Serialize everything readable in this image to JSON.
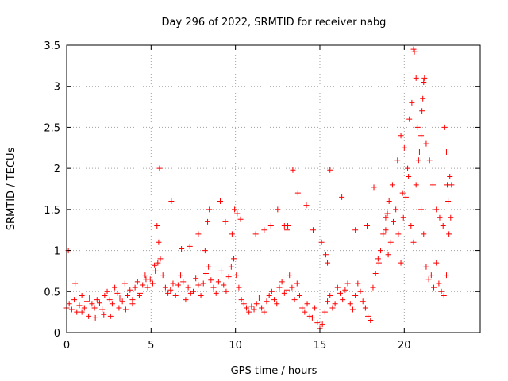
{
  "chart_data": {
    "type": "scatter",
    "title": "Day 296 of 2022, SRMTID for receiver nabg",
    "xlabel": "GPS time / hours",
    "ylabel": "SRMTID / TECUs",
    "xlim": [
      0,
      24.5
    ],
    "ylim": [
      0,
      3.5
    ],
    "x_ticks": [
      0,
      5,
      10,
      15,
      20
    ],
    "x_tick_labels": [
      "0",
      "5",
      "10",
      "15",
      "20"
    ],
    "y_ticks": [
      0,
      0.5,
      1,
      1.5,
      2,
      2.5,
      3,
      3.5
    ],
    "y_tick_labels": [
      "0",
      "0.5",
      "1",
      "1.5",
      "2",
      "2.5",
      "3",
      "3.5"
    ],
    "grid": true,
    "marker": "+",
    "series": [
      {
        "name": "SRMTID",
        "color": "#ff0000",
        "x": [
          0.0,
          0.15,
          0.3,
          0.45,
          0.6,
          0.75,
          0.9,
          1.05,
          1.2,
          1.35,
          1.5,
          1.65,
          1.8,
          1.95,
          2.1,
          2.25,
          2.4,
          2.55,
          2.7,
          2.85,
          3.0,
          3.15,
          3.3,
          3.45,
          3.6,
          3.75,
          3.9,
          4.05,
          4.2,
          4.35,
          4.5,
          4.65,
          4.8,
          4.95,
          5.1,
          5.25,
          5.4,
          5.55,
          5.7,
          5.85,
          6.0,
          6.15,
          6.3,
          6.45,
          6.6,
          6.75,
          6.9,
          7.05,
          7.2,
          7.35,
          7.5,
          7.65,
          7.8,
          7.95,
          8.1,
          8.25,
          8.4,
          8.55,
          8.7,
          8.85,
          9.0,
          9.15,
          9.3,
          9.45,
          9.6,
          9.75,
          9.9,
          10.05,
          10.2,
          10.35,
          10.5,
          10.65,
          10.8,
          10.95,
          11.1,
          11.25,
          11.4,
          11.55,
          11.7,
          11.85,
          12.0,
          12.15,
          12.3,
          12.45,
          12.6,
          12.75,
          12.9,
          13.05,
          13.2,
          13.35,
          13.5,
          13.65,
          13.8,
          13.95,
          14.1,
          14.25,
          14.4,
          14.55,
          14.7,
          14.85,
          15.0,
          15.15,
          15.3,
          15.45,
          15.6,
          15.75,
          15.9,
          16.05,
          16.2,
          16.35,
          16.5,
          16.65,
          16.8,
          16.95,
          17.1,
          17.25,
          17.4,
          17.55,
          17.7,
          17.85,
          18.0,
          18.15,
          18.3,
          18.45,
          18.6,
          18.75,
          18.9,
          19.05,
          19.2,
          19.35,
          19.5,
          19.65,
          19.8,
          19.95,
          20.1,
          20.25,
          20.4,
          20.55,
          20.7,
          20.85,
          21.0,
          21.15,
          21.3,
          21.45,
          21.6,
          21.75,
          21.9,
          22.05,
          22.2,
          22.35,
          22.5,
          22.65,
          22.8,
          0.1,
          0.5,
          0.9,
          1.3,
          1.7,
          2.2,
          2.6,
          3.1,
          3.5,
          3.9,
          4.3,
          4.7,
          5.2,
          5.35,
          5.45,
          5.5,
          6.2,
          6.8,
          7.3,
          7.8,
          8.2,
          8.35,
          8.45,
          9.1,
          9.4,
          9.8,
          9.95,
          10.1,
          10.3,
          11.2,
          11.7,
          12.1,
          12.5,
          12.9,
          13.05,
          13.1,
          13.4,
          13.7,
          14.2,
          14.6,
          15.1,
          15.35,
          15.45,
          15.6,
          16.3,
          17.1,
          17.8,
          18.2,
          18.5,
          18.9,
          19.0,
          19.1,
          19.3,
          19.6,
          19.8,
          19.9,
          20.0,
          20.2,
          20.3,
          20.45,
          20.55,
          20.6,
          20.7,
          20.8,
          20.9,
          21.0,
          21.05,
          21.1,
          21.15,
          21.2,
          21.3,
          21.5,
          21.7,
          21.9,
          22.1,
          22.3,
          22.4,
          22.5,
          22.55,
          22.6,
          22.7,
          22.75
        ],
        "y": [
          0.3,
          0.35,
          0.28,
          0.4,
          0.25,
          0.33,
          0.45,
          0.3,
          0.38,
          0.42,
          0.35,
          0.3,
          0.4,
          0.36,
          0.28,
          0.45,
          0.5,
          0.4,
          0.35,
          0.55,
          0.48,
          0.42,
          0.38,
          0.6,
          0.45,
          0.52,
          0.4,
          0.55,
          0.62,
          0.48,
          0.58,
          0.7,
          0.55,
          0.65,
          0.6,
          0.75,
          0.85,
          0.9,
          0.7,
          0.55,
          0.48,
          0.52,
          0.6,
          0.45,
          0.58,
          0.7,
          0.62,
          0.4,
          0.55,
          0.48,
          0.5,
          0.66,
          0.58,
          0.45,
          0.6,
          0.72,
          0.8,
          0.64,
          0.55,
          0.48,
          0.62,
          0.75,
          0.58,
          0.5,
          0.68,
          0.8,
          0.9,
          0.7,
          0.55,
          0.4,
          0.35,
          0.3,
          0.25,
          0.32,
          0.28,
          0.35,
          0.42,
          0.3,
          0.25,
          0.38,
          0.45,
          0.5,
          0.4,
          0.35,
          0.55,
          0.62,
          0.48,
          0.52,
          0.7,
          0.55,
          0.4,
          0.6,
          0.45,
          0.3,
          0.25,
          0.35,
          0.2,
          0.18,
          0.3,
          0.12,
          0.05,
          0.1,
          0.25,
          0.38,
          0.45,
          0.3,
          0.35,
          0.55,
          0.48,
          0.4,
          0.52,
          0.6,
          0.35,
          0.28,
          0.45,
          0.6,
          0.5,
          0.38,
          0.3,
          0.2,
          0.15,
          0.55,
          0.72,
          0.9,
          1.0,
          1.2,
          1.4,
          0.95,
          1.1,
          1.35,
          1.5,
          1.2,
          0.85,
          1.4,
          1.65,
          1.9,
          1.3,
          1.1,
          1.8,
          2.1,
          1.5,
          1.2,
          0.8,
          0.65,
          0.7,
          0.55,
          0.85,
          0.6,
          0.5,
          0.45,
          0.7,
          1.2,
          1.8,
          1.0,
          0.6,
          0.25,
          0.2,
          0.18,
          0.22,
          0.2,
          0.3,
          0.28,
          0.35,
          0.45,
          0.65,
          0.82,
          1.3,
          1.1,
          2.0,
          1.6,
          1.02,
          1.05,
          1.2,
          1.0,
          1.35,
          1.5,
          1.6,
          1.35,
          1.2,
          1.5,
          1.45,
          1.38,
          1.2,
          1.25,
          1.3,
          1.5,
          1.3,
          1.25,
          1.3,
          1.98,
          1.7,
          1.55,
          1.25,
          1.1,
          0.95,
          0.85,
          1.98,
          1.65,
          1.25,
          1.3,
          1.77,
          0.85,
          1.25,
          1.45,
          1.6,
          1.8,
          2.1,
          2.4,
          1.7,
          2.25,
          2.0,
          2.6,
          2.8,
          3.45,
          3.42,
          3.1,
          2.5,
          2.2,
          2.4,
          2.7,
          2.85,
          3.05,
          3.1,
          2.3,
          2.1,
          1.8,
          1.5,
          1.4,
          1.3,
          2.5,
          2.2,
          1.8,
          1.6,
          1.9,
          1.4
        ]
      }
    ]
  }
}
